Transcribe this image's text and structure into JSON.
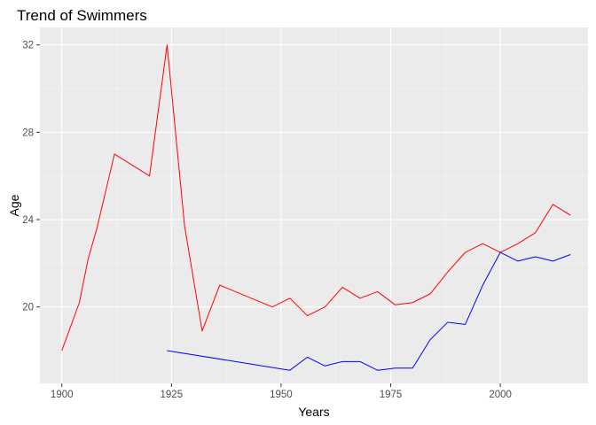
{
  "chart_data": {
    "type": "line",
    "title": "Trend of Swimmers",
    "xlabel": "Years",
    "ylabel": "Age",
    "xlim": [
      1895,
      2020
    ],
    "ylim": [
      16.5,
      32.8
    ],
    "x_ticks": [
      1900,
      1925,
      1950,
      1975,
      2000
    ],
    "y_ticks": [
      20,
      24,
      28,
      32
    ],
    "x_tick_labels": [
      "1900",
      "1925",
      "1950",
      "1975",
      "2000"
    ],
    "y_tick_labels": [
      "20",
      "24",
      "28",
      "32"
    ],
    "grid": true,
    "legend": "none",
    "series": [
      {
        "color": "#ff0000",
        "points": [
          [
            1900,
            18.0
          ],
          [
            1904,
            20.2
          ],
          [
            1906,
            22.2
          ],
          [
            1908,
            23.6
          ],
          [
            1912,
            27.0
          ],
          [
            1920,
            26.0
          ],
          [
            1924,
            32.0
          ],
          [
            1928,
            23.7
          ],
          [
            1932,
            18.9
          ],
          [
            1936,
            21.0
          ],
          [
            1948,
            20.0
          ],
          [
            1952,
            20.4
          ],
          [
            1956,
            19.6
          ],
          [
            1960,
            20.0
          ],
          [
            1964,
            20.9
          ],
          [
            1968,
            20.4
          ],
          [
            1972,
            20.7
          ],
          [
            1976,
            20.1
          ],
          [
            1980,
            20.2
          ],
          [
            1984,
            20.6
          ],
          [
            1988,
            21.6
          ],
          [
            1992,
            22.5
          ],
          [
            1996,
            22.9
          ],
          [
            2000,
            22.5
          ],
          [
            2004,
            22.9
          ],
          [
            2008,
            23.4
          ],
          [
            2012,
            24.7
          ],
          [
            2016,
            24.2
          ]
        ]
      },
      {
        "color": "#0000ff",
        "points": [
          [
            1924,
            18.0
          ],
          [
            1952,
            17.1
          ],
          [
            1956,
            17.7
          ],
          [
            1960,
            17.3
          ],
          [
            1964,
            17.5
          ],
          [
            1968,
            17.5
          ],
          [
            1972,
            17.1
          ],
          [
            1976,
            17.2
          ],
          [
            1980,
            17.2
          ],
          [
            1984,
            18.5
          ],
          [
            1988,
            19.3
          ],
          [
            1992,
            19.2
          ],
          [
            1996,
            21.0
          ],
          [
            2000,
            22.5
          ],
          [
            2004,
            22.1
          ],
          [
            2008,
            22.3
          ],
          [
            2012,
            22.1
          ],
          [
            2016,
            22.4
          ]
        ]
      }
    ]
  }
}
